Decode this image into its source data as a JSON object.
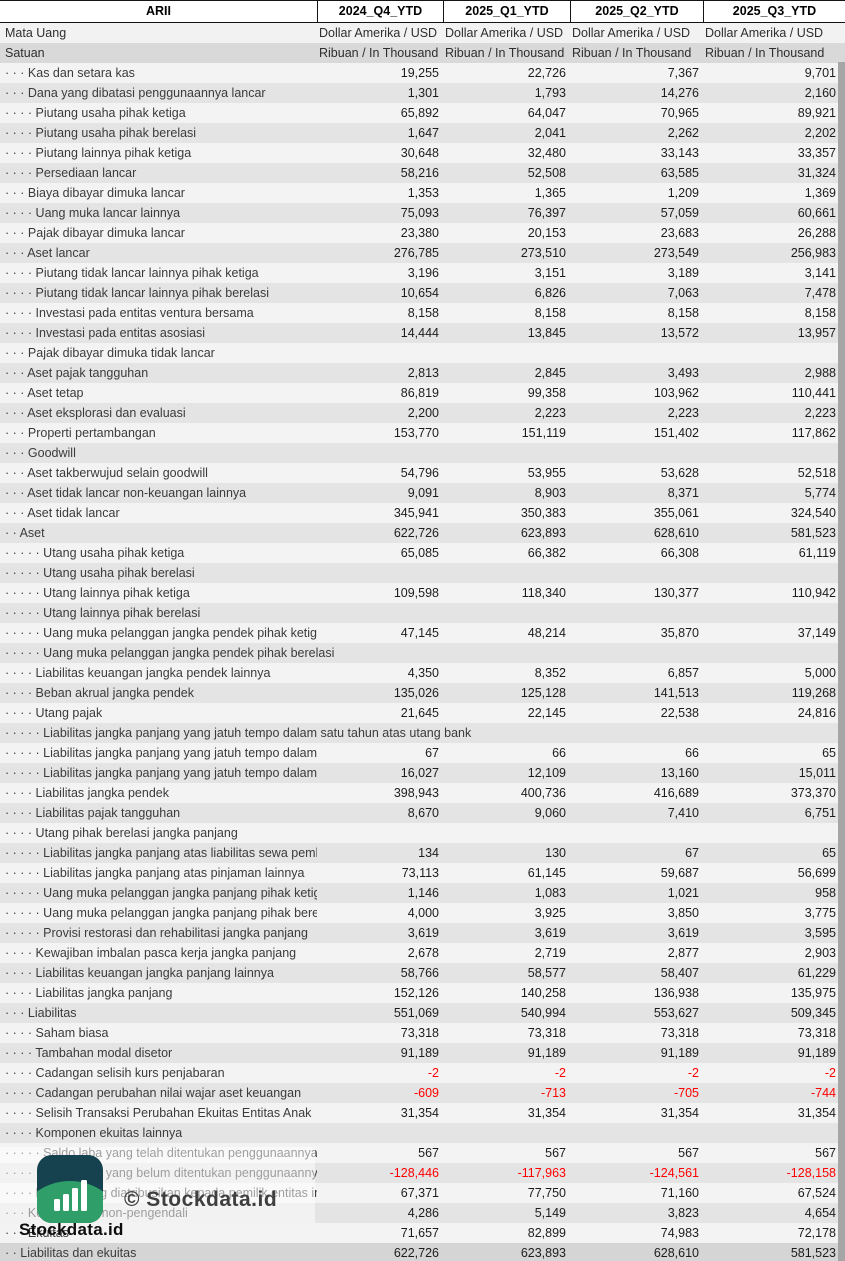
{
  "header": {
    "entity": "ARII",
    "columns": [
      "2024_Q4_YTD",
      "2025_Q1_YTD",
      "2025_Q2_YTD",
      "2025_Q3_YTD"
    ]
  },
  "meta_rows": [
    {
      "label": "Mata Uang",
      "values": [
        "Dollar Amerika / USD",
        "Dollar Amerika / USD",
        "Dollar Amerika / USD",
        "Dollar Amerika / USD"
      ]
    },
    {
      "label": "Satuan",
      "values": [
        "Ribuan / In Thousand",
        "Ribuan / In Thousand",
        "Ribuan / In Thousand",
        "Ribuan / In Thousand"
      ]
    }
  ],
  "rows": [
    {
      "label": "· · · Kas dan setara kas",
      "values": [
        "19,255",
        "22,726",
        "7,367",
        "9,701"
      ]
    },
    {
      "label": "· · · Dana yang dibatasi penggunaannya lancar",
      "values": [
        "1,301",
        "1,793",
        "14,276",
        "2,160"
      ]
    },
    {
      "label": "· · · · Piutang usaha pihak ketiga",
      "values": [
        "65,892",
        "64,047",
        "70,965",
        "89,921"
      ]
    },
    {
      "label": "· · · · Piutang usaha pihak berelasi",
      "values": [
        "1,647",
        "2,041",
        "2,262",
        "2,202"
      ]
    },
    {
      "label": "· · · · Piutang lainnya pihak ketiga",
      "values": [
        "30,648",
        "32,480",
        "33,143",
        "33,357"
      ]
    },
    {
      "label": "· · · · Persediaan lancar",
      "values": [
        "58,216",
        "52,508",
        "63,585",
        "31,324"
      ]
    },
    {
      "label": "· · · Biaya dibayar dimuka lancar",
      "values": [
        "1,353",
        "1,365",
        "1,209",
        "1,369"
      ]
    },
    {
      "label": "· · · · Uang muka lancar lainnya",
      "values": [
        "75,093",
        "76,397",
        "57,059",
        "60,661"
      ]
    },
    {
      "label": "· · · Pajak dibayar dimuka lancar",
      "values": [
        "23,380",
        "20,153",
        "23,683",
        "26,288"
      ]
    },
    {
      "label": "· · · Aset lancar",
      "values": [
        "276,785",
        "273,510",
        "273,549",
        "256,983"
      ]
    },
    {
      "label": "· · · · Piutang tidak lancar lainnya pihak ketiga",
      "values": [
        "3,196",
        "3,151",
        "3,189",
        "3,141"
      ]
    },
    {
      "label": "· · · · Piutang tidak lancar lainnya pihak berelasi",
      "values": [
        "10,654",
        "6,826",
        "7,063",
        "7,478"
      ]
    },
    {
      "label": "· · · · Investasi pada entitas ventura bersama",
      "values": [
        "8,158",
        "8,158",
        "8,158",
        "8,158"
      ]
    },
    {
      "label": "· · · · Investasi pada entitas asosiasi",
      "values": [
        "14,444",
        "13,845",
        "13,572",
        "13,957"
      ]
    },
    {
      "label": "· · · Pajak dibayar dimuka tidak lancar",
      "values": [
        "",
        "",
        "",
        ""
      ]
    },
    {
      "label": "· · · Aset pajak tangguhan",
      "values": [
        "2,813",
        "2,845",
        "3,493",
        "2,988"
      ]
    },
    {
      "label": "· · · Aset tetap",
      "values": [
        "86,819",
        "99,358",
        "103,962",
        "110,441"
      ]
    },
    {
      "label": "· · · Aset eksplorasi dan evaluasi",
      "values": [
        "2,200",
        "2,223",
        "2,223",
        "2,223"
      ]
    },
    {
      "label": "· · · Properti pertambangan",
      "values": [
        "153,770",
        "151,119",
        "151,402",
        "117,862"
      ]
    },
    {
      "label": "· · · Goodwill",
      "values": [
        "",
        "",
        "",
        ""
      ]
    },
    {
      "label": "· · · Aset takberwujud selain goodwill",
      "values": [
        "54,796",
        "53,955",
        "53,628",
        "52,518"
      ]
    },
    {
      "label": "· · · Aset tidak lancar non-keuangan lainnya",
      "values": [
        "9,091",
        "8,903",
        "8,371",
        "5,774"
      ]
    },
    {
      "label": "· · · Aset tidak lancar",
      "values": [
        "345,941",
        "350,383",
        "355,061",
        "324,540"
      ]
    },
    {
      "label": "· · Aset",
      "values": [
        "622,726",
        "623,893",
        "628,610",
        "581,523"
      ]
    },
    {
      "label": "· · · · · Utang usaha pihak ketiga",
      "values": [
        "65,085",
        "66,382",
        "66,308",
        "61,119"
      ]
    },
    {
      "label": "· · · · · Utang usaha pihak berelasi",
      "values": [
        "",
        "",
        "",
        ""
      ]
    },
    {
      "label": "· · · · · Utang lainnya pihak ketiga",
      "values": [
        "109,598",
        "118,340",
        "130,377",
        "110,942"
      ]
    },
    {
      "label": "· · · · · Utang lainnya pihak berelasi",
      "values": [
        "",
        "",
        "",
        ""
      ]
    },
    {
      "label": "· · · · · Uang muka pelanggan jangka pendek pihak ketiga",
      "values": [
        "47,145",
        "48,214",
        "35,870",
        "37,149"
      ]
    },
    {
      "label": "· · · · · Uang muka pelanggan jangka pendek pihak berelasi",
      "values": [
        "",
        "",
        "",
        ""
      ]
    },
    {
      "label": "· · · · Liabilitas keuangan jangka pendek lainnya",
      "values": [
        "4,350",
        "8,352",
        "6,857",
        "5,000"
      ]
    },
    {
      "label": "· · · · Beban akrual jangka pendek",
      "values": [
        "135,026",
        "125,128",
        "141,513",
        "119,268"
      ]
    },
    {
      "label": "· · · · Utang pajak",
      "values": [
        "21,645",
        "22,145",
        "22,538",
        "24,816"
      ]
    },
    {
      "label": "· · · · · Liabilitas jangka panjang yang jatuh tempo dalam satu tahun atas utang bank",
      "values": [
        "",
        "",
        "",
        ""
      ]
    },
    {
      "label": "· · · · · Liabilitas jangka panjang yang jatuh tempo dalam satu tahun atas liabilitas sewa",
      "values": [
        "67",
        "66",
        "66",
        "65"
      ]
    },
    {
      "label": "· · · · · Liabilitas jangka panjang yang jatuh tempo dalam satu tahun atas pinjaman lainnya",
      "values": [
        "16,027",
        "12,109",
        "13,160",
        "15,011"
      ]
    },
    {
      "label": "· · · · Liabilitas jangka pendek",
      "values": [
        "398,943",
        "400,736",
        "416,689",
        "373,370"
      ]
    },
    {
      "label": "· · · · Liabilitas pajak tangguhan",
      "values": [
        "8,670",
        "9,060",
        "7,410",
        "6,751"
      ]
    },
    {
      "label": "· · · · Utang pihak berelasi jangka panjang",
      "values": [
        "",
        "",
        "",
        ""
      ]
    },
    {
      "label": "· · · · · Liabilitas jangka panjang atas liabilitas sewa pembiayaan",
      "values": [
        "134",
        "130",
        "67",
        "65"
      ]
    },
    {
      "label": "· · · · · Liabilitas jangka panjang atas pinjaman lainnya",
      "values": [
        "73,113",
        "61,145",
        "59,687",
        "56,699"
      ]
    },
    {
      "label": "· · · · · Uang muka pelanggan jangka panjang pihak ketiga",
      "values": [
        "1,146",
        "1,083",
        "1,021",
        "958"
      ]
    },
    {
      "label": "· · · · · Uang muka pelanggan jangka panjang pihak berelasi",
      "values": [
        "4,000",
        "3,925",
        "3,850",
        "3,775"
      ]
    },
    {
      "label": "· · · · · Provisi restorasi dan rehabilitasi jangka panjang",
      "values": [
        "3,619",
        "3,619",
        "3,619",
        "3,595"
      ]
    },
    {
      "label": "· · · · Kewajiban imbalan pasca kerja jangka panjang",
      "values": [
        "2,678",
        "2,719",
        "2,877",
        "2,903"
      ]
    },
    {
      "label": "· · · · Liabilitas keuangan jangka panjang lainnya",
      "values": [
        "58,766",
        "58,577",
        "58,407",
        "61,229"
      ]
    },
    {
      "label": "· · · · Liabilitas jangka panjang",
      "values": [
        "152,126",
        "140,258",
        "136,938",
        "135,975"
      ]
    },
    {
      "label": "· · · Liabilitas",
      "values": [
        "551,069",
        "540,994",
        "553,627",
        "509,345"
      ]
    },
    {
      "label": "· · · · Saham biasa",
      "values": [
        "73,318",
        "73,318",
        "73,318",
        "73,318"
      ]
    },
    {
      "label": "· · · · Tambahan modal disetor",
      "values": [
        "91,189",
        "91,189",
        "91,189",
        "91,189"
      ]
    },
    {
      "label": "· · · · Cadangan selisih kurs penjabaran",
      "values": [
        "-2",
        "-2",
        "-2",
        "-2"
      ]
    },
    {
      "label": "· · · · Cadangan perubahan nilai wajar aset keuangan",
      "values": [
        "-609",
        "-713",
        "-705",
        "-744"
      ]
    },
    {
      "label": "· · · · Selisih Transaksi Perubahan Ekuitas Entitas Anak",
      "values": [
        "31,354",
        "31,354",
        "31,354",
        "31,354"
      ]
    },
    {
      "label": "· · · · Komponen ekuitas lainnya",
      "values": [
        "",
        "",
        "",
        ""
      ]
    },
    {
      "label": "· · · · · Saldo laba yang telah ditentukan penggunaannya",
      "values": [
        "567",
        "567",
        "567",
        "567"
      ]
    },
    {
      "label": "· · · · · Saldo laba yang belum ditentukan penggunaannya",
      "values": [
        "-128,446",
        "-117,963",
        "-124,561",
        "-128,158"
      ]
    },
    {
      "label": "· · · · Ekuitas yang diatribusikan kepada pemilik entitas induk",
      "values": [
        "67,371",
        "77,750",
        "71,160",
        "67,524"
      ]
    },
    {
      "label": "· · · Kepentingan non-pengendali",
      "values": [
        "4,286",
        "5,149",
        "3,823",
        "4,654"
      ]
    },
    {
      "label": "· · · Ekuitas",
      "values": [
        "71,657",
        "82,899",
        "74,983",
        "72,178"
      ]
    },
    {
      "label": "· · Liabilitas dan ekuitas",
      "values": [
        "622,726",
        "623,893",
        "628,610",
        "581,523"
      ]
    }
  ],
  "watermark": {
    "center_text": "© Stockdata.id",
    "corner_text": "Stockdata.id",
    "logo_icon": "stockdata-bar-chart-logo"
  },
  "colors": {
    "row_light": "#f3f3f3",
    "row_dark": "#e4e4e4",
    "mata_uang_row": "#f2f2f2",
    "satuan_row": "#d9d9d9",
    "total_row": "#d5d5d5",
    "negative": "#ff0000",
    "scrollbar": "#a6a6a6",
    "logo_dark": "#15424e",
    "logo_green": "#2f9e68"
  }
}
